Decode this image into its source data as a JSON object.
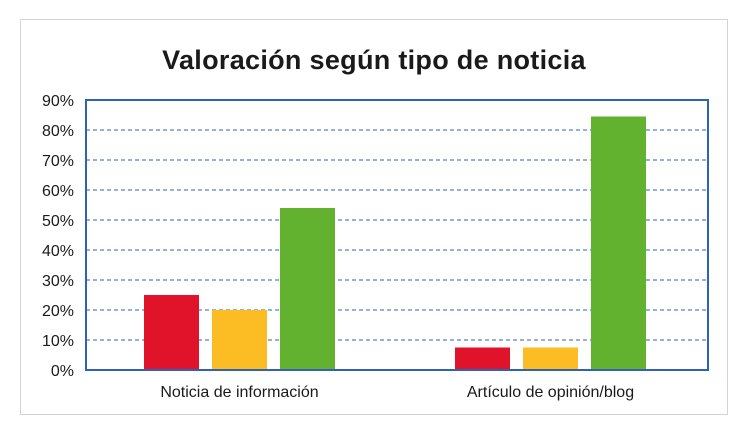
{
  "chart_data": {
    "type": "bar",
    "title": "Valoración según tipo de noticia",
    "categories": [
      "Noticia de información",
      "Artículo de opinión/blog"
    ],
    "series": [
      {
        "color": "#e0132b",
        "values": [
          25,
          7.5
        ]
      },
      {
        "color": "#fbbd23",
        "values": [
          20,
          7.5
        ]
      },
      {
        "color": "#63b22f",
        "values": [
          54,
          84.5
        ]
      }
    ],
    "ylim": [
      0,
      90
    ],
    "yticks": [
      "0%",
      "10%",
      "20%",
      "30%",
      "40%",
      "50%",
      "60%",
      "70%",
      "80%",
      "90%"
    ],
    "grid": true,
    "legend": "none",
    "frame_color": "#2d62b5"
  }
}
